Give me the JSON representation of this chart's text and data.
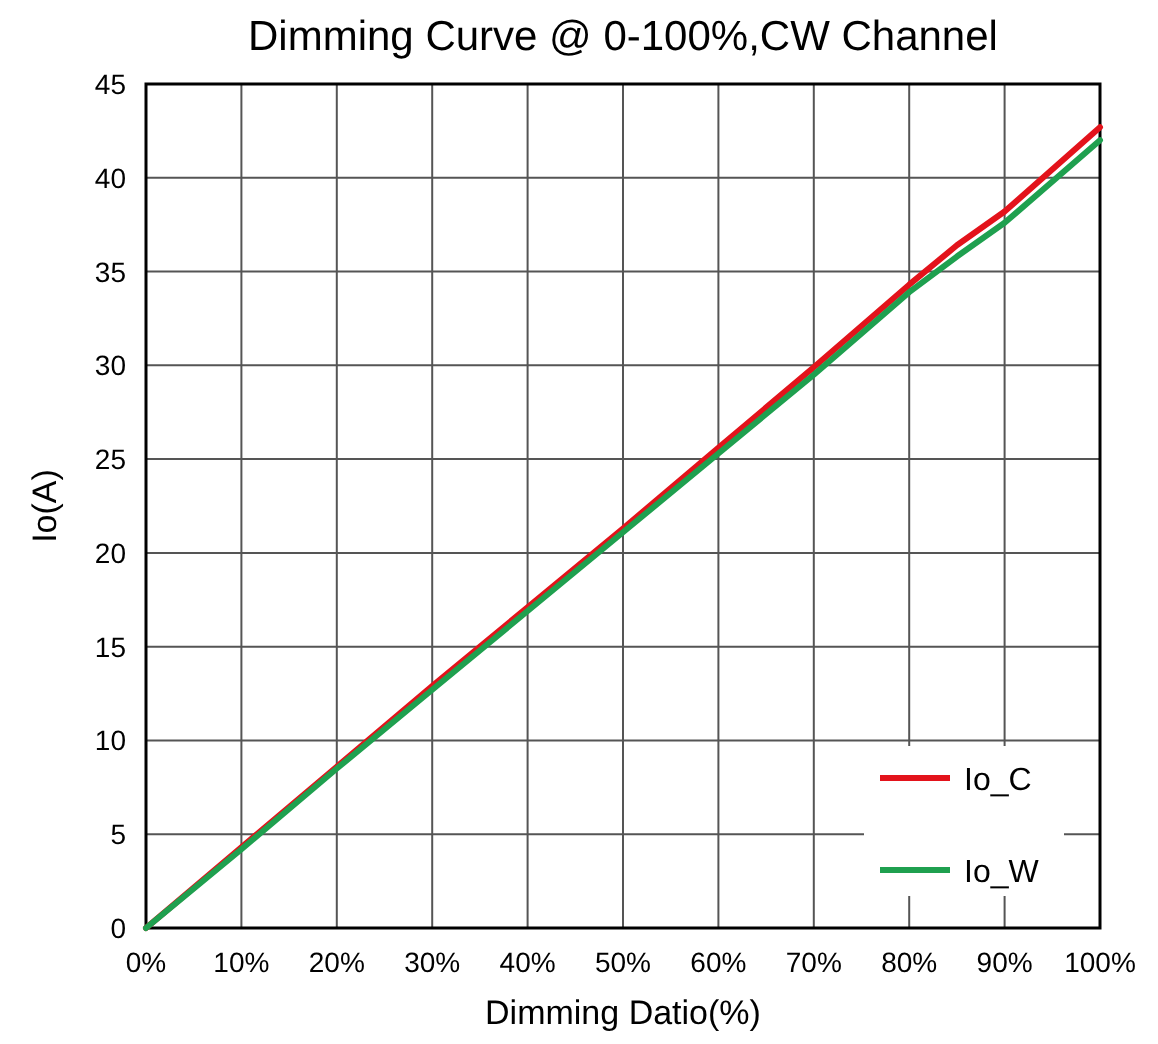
{
  "chart_data": {
    "type": "line",
    "title": "Dimming Curve @ 0-100%,CW Channel",
    "xlabel": "Dimming Datio(%)",
    "ylabel": "Io(A)",
    "x": [
      0,
      10,
      20,
      30,
      40,
      50,
      60,
      70,
      80,
      85,
      90,
      100
    ],
    "series": [
      {
        "name": "Io_C",
        "color": "#e3131b",
        "values": [
          0,
          4.3,
          8.6,
          12.9,
          17.1,
          21.3,
          25.6,
          29.9,
          34.3,
          36.4,
          38.2,
          42.7
        ]
      },
      {
        "name": "Io_W",
        "color": "#1fa04f",
        "values": [
          0,
          4.2,
          8.5,
          12.7,
          16.9,
          21.1,
          25.3,
          29.5,
          33.9,
          35.8,
          37.6,
          42.0
        ]
      }
    ],
    "xlim": [
      0,
      100
    ],
    "ylim": [
      0,
      45
    ],
    "xticks": [
      {
        "value": 0,
        "label": "0%"
      },
      {
        "value": 10,
        "label": "10%"
      },
      {
        "value": 20,
        "label": "20%"
      },
      {
        "value": 30,
        "label": "30%"
      },
      {
        "value": 40,
        "label": "40%"
      },
      {
        "value": 50,
        "label": "50%"
      },
      {
        "value": 60,
        "label": "60%"
      },
      {
        "value": 70,
        "label": "70%"
      },
      {
        "value": 80,
        "label": "80%"
      },
      {
        "value": 90,
        "label": "90%"
      },
      {
        "value": 100,
        "label": "100%"
      }
    ],
    "yticks": [
      0,
      5,
      10,
      15,
      20,
      25,
      30,
      35,
      40,
      45
    ],
    "grid": true,
    "legend": "bottom right",
    "marker": "none",
    "line_style": "solid"
  }
}
